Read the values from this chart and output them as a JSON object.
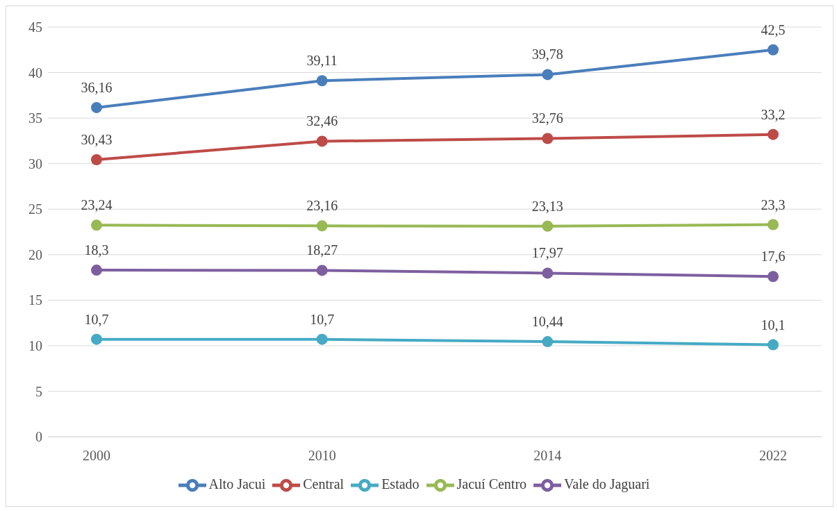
{
  "chart_data": {
    "type": "line",
    "categories": [
      "2000",
      "2010",
      "2014",
      "2022"
    ],
    "series": [
      {
        "name": "Alto Jacui",
        "color": "#4a7ebb",
        "values": [
          36.16,
          39.11,
          39.78,
          42.5
        ],
        "value_labels": [
          "36,16",
          "39,11",
          "39,78",
          "42,5"
        ]
      },
      {
        "name": "Central",
        "color": "#be4b48",
        "values": [
          30.43,
          32.46,
          32.76,
          33.2
        ],
        "value_labels": [
          "30,43",
          "32,46",
          "32,76",
          "33,2"
        ]
      },
      {
        "name": "Jacuí Centro",
        "color": "#98b954",
        "values": [
          23.24,
          23.16,
          23.13,
          23.3
        ],
        "value_labels": [
          "23,24",
          "23,16",
          "23,13",
          "23,3"
        ]
      },
      {
        "name": "Vale do Jaguari",
        "color": "#7d5fa0",
        "values": [
          18.3,
          18.27,
          17.97,
          17.6
        ],
        "value_labels": [
          "18,3",
          "18,27",
          "17,97",
          "17,6"
        ]
      },
      {
        "name": "Estado",
        "color": "#46aac5",
        "values": [
          10.7,
          10.7,
          10.44,
          10.1
        ],
        "value_labels": [
          "10,7",
          "10,7",
          "10,44",
          "10,1"
        ]
      }
    ],
    "ylim": [
      0,
      45
    ],
    "yticks": [
      0,
      5,
      10,
      15,
      20,
      25,
      30,
      35,
      40,
      45
    ],
    "grid": "y",
    "legend": "bottom",
    "marker": "circle",
    "line_style": "solid"
  }
}
